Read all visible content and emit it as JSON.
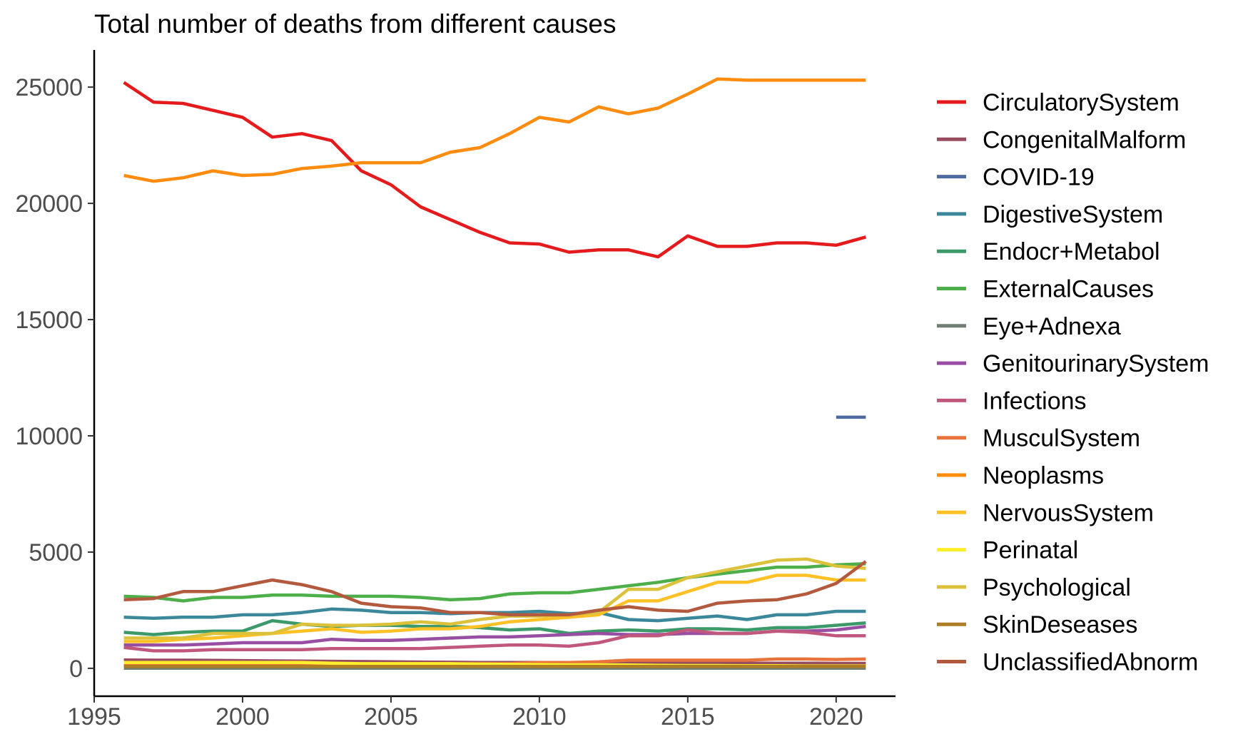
{
  "chart_data": {
    "type": "line",
    "title": "Total number of deaths from different causes",
    "xlabel": "",
    "ylabel": "",
    "xlim": [
      1995,
      2022
    ],
    "ylim": [
      -1200,
      26600
    ],
    "x_ticks": [
      "1995",
      "2000",
      "2005",
      "2010",
      "2015",
      "2020"
    ],
    "y_ticks": [
      "0",
      "5000",
      "10000",
      "15000",
      "20000",
      "25000"
    ],
    "grid": false,
    "legend_position": "right",
    "x": [
      1996,
      1997,
      1998,
      1999,
      2000,
      2001,
      2002,
      2003,
      2004,
      2005,
      2006,
      2007,
      2008,
      2009,
      2010,
      2011,
      2012,
      2013,
      2014,
      2015,
      2016,
      2017,
      2018,
      2019,
      2020,
      2021
    ],
    "series": [
      {
        "name": "CirculatorySystem",
        "color": "#e41a1c",
        "values": [
          25200,
          24350,
          24300,
          24000,
          23700,
          22850,
          23000,
          22700,
          21400,
          20800,
          19850,
          19300,
          18750,
          18300,
          18250,
          17900,
          18000,
          18000,
          17700,
          18600,
          18150,
          18150,
          18300,
          18300,
          18200,
          18550
        ]
      },
      {
        "name": "CongenitalMalform",
        "color": "#984c60",
        "values": [
          360,
          350,
          350,
          340,
          330,
          320,
          310,
          300,
          290,
          280,
          270,
          260,
          250,
          250,
          250,
          240,
          240,
          230,
          230,
          230,
          220,
          220,
          220,
          220,
          210,
          210
        ]
      },
      {
        "name": "COVID-19",
        "color": "#4e6aa0",
        "values": [
          null,
          null,
          null,
          null,
          null,
          null,
          null,
          null,
          null,
          null,
          null,
          null,
          null,
          null,
          null,
          null,
          null,
          null,
          null,
          null,
          null,
          null,
          null,
          null,
          10800,
          10800
        ]
      },
      {
        "name": "DigestiveSystem",
        "color": "#3a889a",
        "values": [
          2200,
          2150,
          2200,
          2200,
          2300,
          2300,
          2400,
          2550,
          2500,
          2400,
          2400,
          2350,
          2400,
          2400,
          2450,
          2350,
          2400,
          2100,
          2050,
          2150,
          2250,
          2100,
          2300,
          2300,
          2450,
          2450
        ]
      },
      {
        "name": "Endocr+Metabol",
        "color": "#3c9a6a",
        "values": [
          1550,
          1450,
          1550,
          1600,
          1600,
          2050,
          1900,
          1800,
          1850,
          1850,
          1800,
          1800,
          1750,
          1650,
          1700,
          1500,
          1600,
          1650,
          1600,
          1700,
          1700,
          1650,
          1750,
          1750,
          1850,
          1950
        ]
      },
      {
        "name": "ExternalCauses",
        "color": "#4daf4a",
        "values": [
          3100,
          3050,
          2900,
          3050,
          3050,
          3150,
          3150,
          3100,
          3100,
          3100,
          3050,
          2950,
          3000,
          3200,
          3250,
          3250,
          3400,
          3550,
          3700,
          3900,
          4050,
          4200,
          4350,
          4350,
          4450,
          4500
        ]
      },
      {
        "name": "Eye+Adnexa",
        "color": "#727f74",
        "values": [
          5,
          5,
          5,
          5,
          5,
          5,
          5,
          5,
          5,
          5,
          5,
          5,
          5,
          5,
          5,
          5,
          5,
          5,
          5,
          5,
          5,
          5,
          5,
          5,
          5,
          5
        ]
      },
      {
        "name": "GenitourinarySystem",
        "color": "#984ea3",
        "values": [
          1000,
          1000,
          1000,
          1050,
          1100,
          1100,
          1100,
          1250,
          1200,
          1200,
          1250,
          1300,
          1350,
          1350,
          1400,
          1450,
          1500,
          1450,
          1450,
          1500,
          1500,
          1500,
          1600,
          1600,
          1650,
          1800
        ]
      },
      {
        "name": "Infections",
        "color": "#c0577c",
        "values": [
          900,
          750,
          750,
          800,
          800,
          800,
          800,
          850,
          850,
          850,
          850,
          900,
          950,
          1000,
          1000,
          950,
          1100,
          1400,
          1400,
          1650,
          1500,
          1500,
          1600,
          1550,
          1400,
          1400
        ]
      },
      {
        "name": "MusculSystem",
        "color": "#e8743b",
        "values": [
          150,
          150,
          150,
          150,
          160,
          160,
          170,
          170,
          180,
          180,
          190,
          190,
          200,
          200,
          250,
          250,
          280,
          350,
          350,
          350,
          350,
          350,
          400,
          400,
          380,
          400
        ]
      },
      {
        "name": "Neoplasms",
        "color": "#ff8c0f",
        "values": [
          21200,
          20950,
          21100,
          21400,
          21200,
          21250,
          21500,
          21600,
          21750,
          21750,
          21750,
          22200,
          22400,
          23000,
          23700,
          23500,
          24150,
          23850,
          24100,
          24700,
          25350,
          25300,
          25300,
          25300,
          25300,
          25300
        ]
      },
      {
        "name": "NervousSystem",
        "color": "#ffc125",
        "values": [
          1150,
          1150,
          1250,
          1300,
          1400,
          1500,
          1600,
          1700,
          1550,
          1600,
          1700,
          1700,
          1800,
          2000,
          2100,
          2200,
          2300,
          2900,
          2900,
          3300,
          3700,
          3700,
          4000,
          4000,
          3800,
          3800
        ]
      },
      {
        "name": "Perinatal",
        "color": "#ffef2a",
        "values": [
          250,
          250,
          250,
          250,
          250,
          250,
          250,
          220,
          200,
          200,
          200,
          200,
          180,
          170,
          160,
          150,
          150,
          140,
          130,
          120,
          120,
          110,
          110,
          100,
          100,
          100
        ]
      },
      {
        "name": "Psychological",
        "color": "#dcc13a",
        "values": [
          1300,
          1300,
          1300,
          1500,
          1500,
          1500,
          1900,
          1850,
          1850,
          1900,
          2000,
          1900,
          2100,
          2250,
          2250,
          2300,
          2400,
          3400,
          3400,
          3900,
          4150,
          4400,
          4650,
          4700,
          4400,
          4300
        ]
      },
      {
        "name": "SkinDeseases",
        "color": "#ad7d25",
        "values": [
          80,
          80,
          80,
          80,
          80,
          80,
          80,
          80,
          80,
          80,
          80,
          80,
          80,
          80,
          80,
          80,
          80,
          80,
          80,
          80,
          80,
          80,
          80,
          80,
          80,
          80
        ]
      },
      {
        "name": "UnclassifiedAbnorm",
        "color": "#b35a3e",
        "values": [
          2950,
          3000,
          3300,
          3300,
          3550,
          3800,
          3600,
          3300,
          2800,
          2650,
          2600,
          2400,
          2400,
          2300,
          2300,
          2300,
          2500,
          2650,
          2500,
          2450,
          2800,
          2900,
          2950,
          3200,
          3650,
          4600
        ]
      }
    ]
  }
}
